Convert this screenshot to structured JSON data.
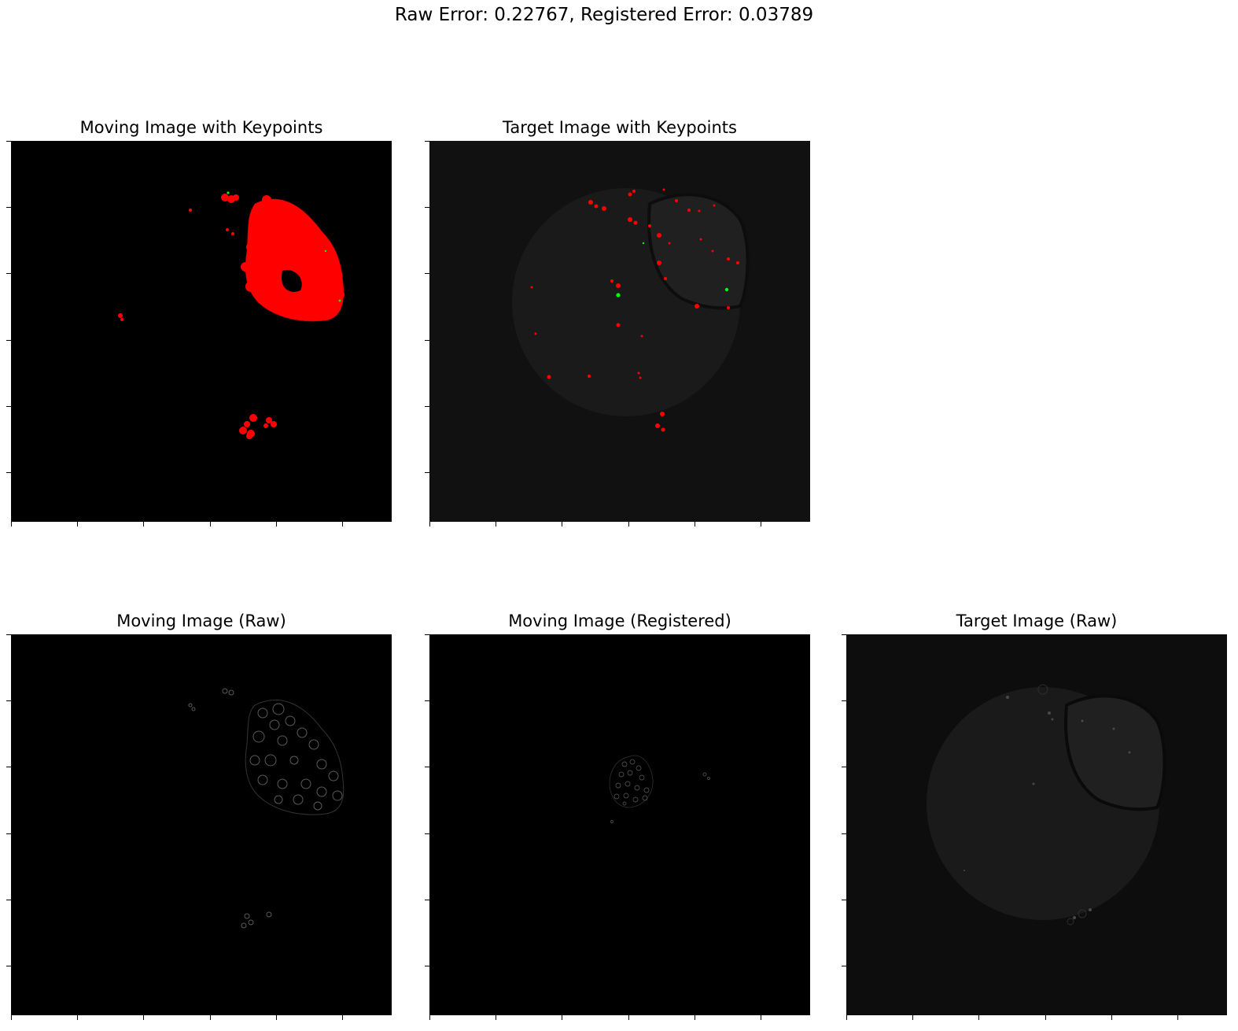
{
  "figure": {
    "suptitle": "Raw Error: 0.22767, Registered Error: 0.03789"
  },
  "panels": {
    "moving_kp": {
      "title": "Moving Image with Keypoints"
    },
    "target_kp": {
      "title": "Target Image with Keypoints"
    },
    "moving_raw": {
      "title": "Moving Image (Raw)"
    },
    "moving_reg": {
      "title": "Moving Image (Registered)"
    },
    "target_raw": {
      "title": "Target Image (Raw)"
    }
  },
  "colors": {
    "keypoint_primary": "#ff0000",
    "keypoint_secondary": "#00ff00",
    "image_background": "#000000",
    "tissue_gray": "#1a1a1a"
  }
}
